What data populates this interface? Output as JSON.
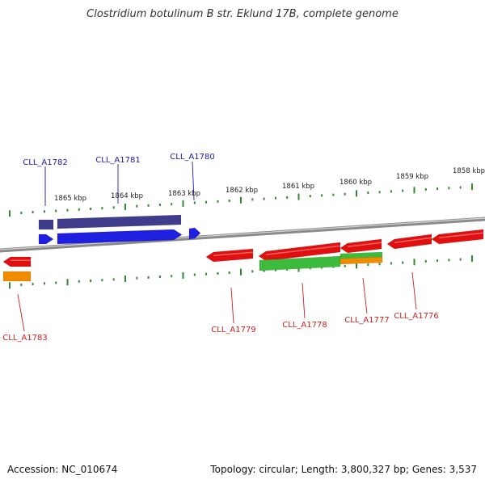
{
  "title": "Clostridium botulinum B str. Eklund 17B, complete genome",
  "footer": {
    "accession": "Accession: NC_010674",
    "summary": "Topology: circular; Length: 3,800,327 bp; Genes: 3,537"
  },
  "colors": {
    "backbone": "#8a8a8a",
    "tick": "#2e8b2e",
    "forward_gene": "#1f1fe0",
    "forward_gene_dark": "#3f3c8c",
    "reverse_gene": "#e01010",
    "reverse_cds": "#3dbb3d",
    "reverse_feature": "#f08c00",
    "forward_label": "#1a1aa8",
    "reverse_label": "#cc1f1f"
  },
  "ticks": [
    {
      "label": "1865 kbp"
    },
    {
      "label": "1864 kbp"
    },
    {
      "label": "1863 kbp"
    },
    {
      "label": "1862 kbp"
    },
    {
      "label": "1861 kbp"
    },
    {
      "label": "1860 kbp"
    },
    {
      "label": "1859 kbp"
    },
    {
      "label": "1858 kbp"
    }
  ],
  "gene_labels": {
    "forward": [
      "CLL_A1782",
      "CLL_A1781",
      "CLL_A1780"
    ],
    "reverse": [
      "CLL_A1783",
      "CLL_A1779",
      "CLL_A1778",
      "CLL_A1777",
      "CLL_A1776"
    ]
  }
}
